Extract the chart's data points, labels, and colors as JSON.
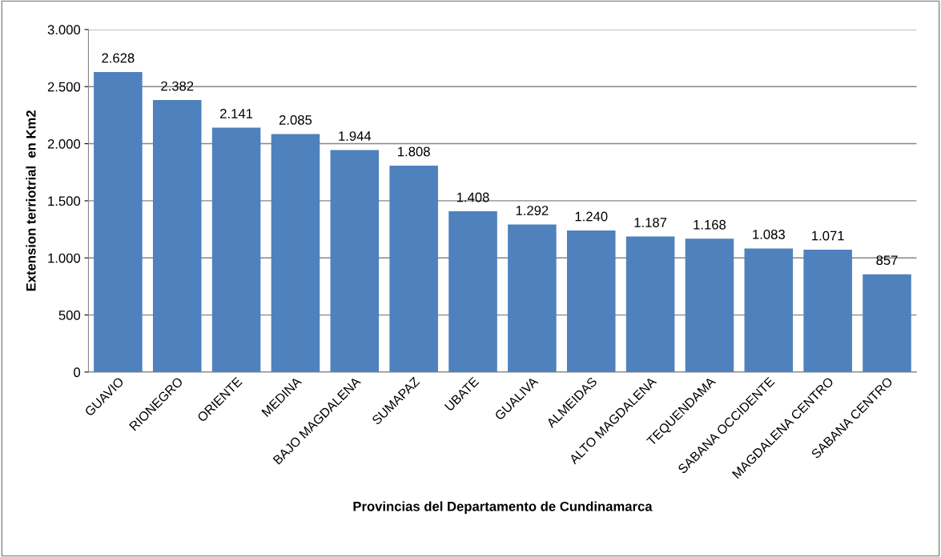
{
  "chart_data": {
    "type": "bar",
    "xlabel": "Provincias del Departamento de Cundinamarca",
    "ylabel": "Extension terriotrial  en Km2",
    "categories": [
      "GUAVIO",
      "RIONEGRO",
      "ORIENTE",
      "MEDINA",
      "BAJO MAGDALENA",
      "SUMAPAZ",
      "UBATE",
      "GUALIVA",
      "ALMEIDAS",
      "ALTO MAGDALENA",
      "TEQUENDAMA",
      "SABANA OCCIDENTE",
      "MAGDALENA CENTRO",
      "SABANA CENTRO"
    ],
    "values": [
      2628,
      2382,
      2141,
      2085,
      1944,
      1808,
      1408,
      1292,
      1240,
      1187,
      1168,
      1083,
      1071,
      857
    ],
    "value_labels": [
      "2.628",
      "2.382",
      "2.141",
      "2.085",
      "1.944",
      "1.808",
      "1.408",
      "1.292",
      "1.240",
      "1.187",
      "1.168",
      "1.083",
      "1.071",
      "857"
    ],
    "color": "#4f81bd",
    "ylim": [
      0,
      3000
    ],
    "yticks": [
      0,
      500,
      {
        "value": 1000,
        "label": "1.000"
      },
      {
        "value": 1500,
        "label": "1.500"
      },
      {
        "value": 2000,
        "label": "2.000"
      },
      {
        "value": 2500,
        "label": "2.500"
      },
      {
        "value": 3000,
        "label": "3.000"
      }
    ],
    "grid": "y",
    "legend": false
  }
}
